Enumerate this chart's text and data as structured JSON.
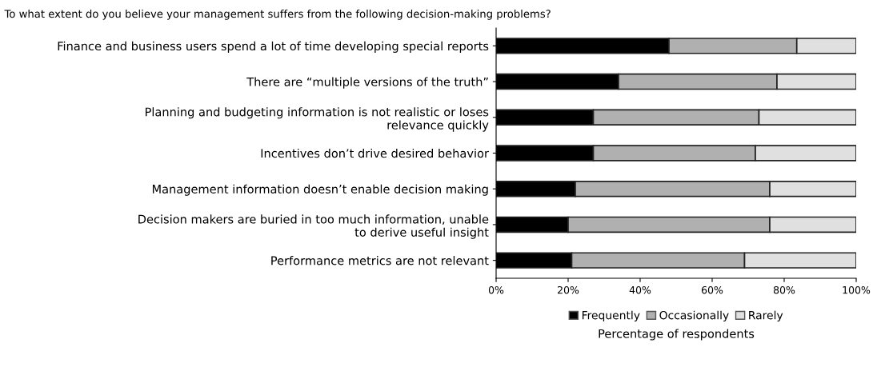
{
  "chart_data": {
    "type": "bar",
    "orientation": "horizontal",
    "stacked": true,
    "title": "To what extent do you believe your management suffers from the following decision-making problems?",
    "xlabel": "Percentage of respondents",
    "categories": [
      "Finance and business users spend a lot of time developing special reports",
      "There are “multiple versions of the truth”",
      "Planning and budgeting information is not realistic or loses\nrelevance quickly",
      "Incentives don’t drive desired behavior",
      "Management information doesn’t enable decision making",
      "Decision makers are buried in too much information, unable\nto derive useful insight",
      "Performance metrics are not relevant"
    ],
    "series": [
      {
        "name": "Frequently",
        "color": "#000000",
        "values": [
          48,
          34,
          27,
          27,
          22,
          20,
          21
        ]
      },
      {
        "name": "Occasionally",
        "color": "#b0b0b0",
        "values": [
          35.5,
          44,
          46,
          45,
          54,
          56,
          48
        ]
      },
      {
        "name": "Rarely",
        "color": "#e0e0e0",
        "values": [
          16.5,
          22,
          27,
          28,
          24,
          24,
          31
        ]
      }
    ],
    "xlim": [
      0,
      100
    ],
    "xticks": [
      {
        "value": 0,
        "label": "0%"
      },
      {
        "value": 20,
        "label": "20%"
      },
      {
        "value": 40,
        "label": "40%"
      },
      {
        "value": 60,
        "label": "60%"
      },
      {
        "value": 80,
        "label": "80%"
      },
      {
        "value": 100,
        "label": "100%"
      }
    ],
    "grid": false,
    "legend": "bottom"
  }
}
